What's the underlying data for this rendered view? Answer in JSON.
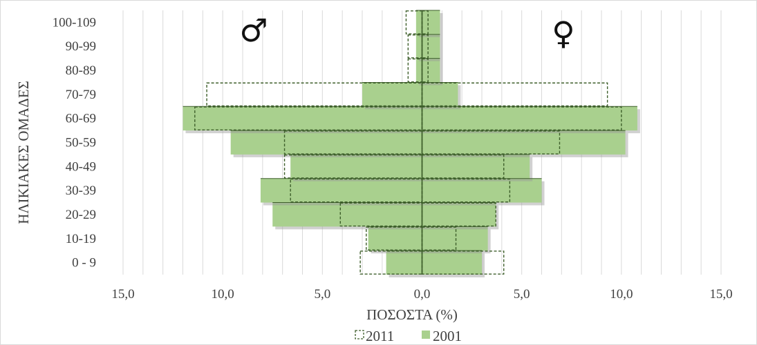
{
  "chart_data": {
    "type": "bar",
    "orientation": "horizontal",
    "categories": [
      "0 - 9",
      "10-19",
      "20-29",
      "30-39",
      "40-49",
      "50-59",
      "60-69",
      "70-79",
      "80-89",
      "90-99",
      "100-109"
    ],
    "xlabel": "ΠΟΣΟΣΤΑ (%)",
    "ylabel": "ΗΛΙΚΙΑΚΕΣ ΟΜΑΔΕΣ",
    "xlim": [
      -15,
      15
    ],
    "xticks": [
      -15,
      -10,
      -5,
      0,
      5,
      10,
      15
    ],
    "xtick_labels": [
      "15,0",
      "10,0",
      "5,0",
      "0,0",
      "5,0",
      "10,0",
      "15,0"
    ],
    "grid": true,
    "legend_position": "bottom",
    "symbols": {
      "male": "♂",
      "female": "♀"
    },
    "series": [
      {
        "name": "2011",
        "style": "dashed-outline",
        "color": "#3d5e2a",
        "male": [
          3.1,
          2.8,
          4.1,
          6.6,
          6.9,
          6.9,
          11.4,
          10.8,
          0.7,
          0.7,
          0.8
        ],
        "female": [
          4.1,
          1.7,
          3.7,
          4.4,
          4.1,
          6.9,
          10.0,
          9.3,
          0.3,
          0.3,
          0.3
        ]
      },
      {
        "name": "2001",
        "style": "filled",
        "color": "#a9d08e",
        "male": [
          1.8,
          2.7,
          7.5,
          8.1,
          6.6,
          9.6,
          12.0,
          3.0,
          0.3,
          0.3,
          0.3
        ],
        "female": [
          3.0,
          3.3,
          3.7,
          6.0,
          5.4,
          10.2,
          10.8,
          1.8,
          0.9,
          0.9,
          0.9
        ]
      }
    ]
  },
  "colors": {
    "fill_2001": "#a9d08e",
    "outline_2011": "#3d5e2a",
    "axis_line": "#3d5e2a",
    "grid": "#d9d9d9",
    "text": "#404040"
  }
}
